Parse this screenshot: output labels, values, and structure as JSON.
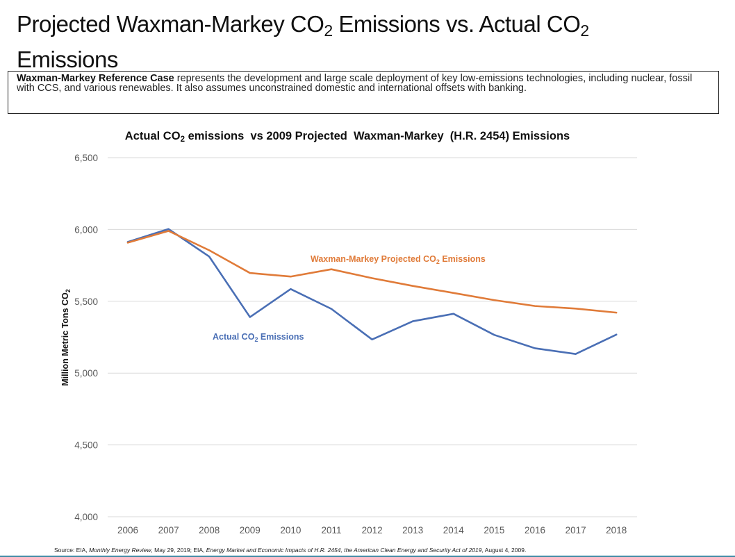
{
  "slide": {
    "title_pre": "Projected Waxman-Markey CO",
    "title_sub1": "2",
    "title_mid": " Emissions vs. Actual CO",
    "title_sub2": "2",
    "title_post": " Emissions"
  },
  "description": {
    "bold": "Waxman-Markey Reference Case",
    "text": " represents the development and large scale deployment of key low-emissions technologies, including nuclear, fossil with CCS, and various renewables. It also assumes unconstrained domestic and international offsets with banking."
  },
  "source": {
    "prefix": "Source: EIA, ",
    "italic1": "Monthly Energy Review",
    "mid": ", May 29, 2019; EIA, ",
    "italic2": "Energy Market and Economic Impacts of H.R. 2454, the American Clean Energy and Security Act of 2019",
    "suffix": ", August 4, 2009."
  },
  "colors": {
    "actual": "#4a6fb5",
    "projected": "#e07b39",
    "grid": "#d9d9d9",
    "bottom_rule": "#3f8ba6"
  },
  "chart_data": {
    "type": "line",
    "title_pre": "Actual CO",
    "title_sub": "2",
    "title_post": " emissions  vs 2009 Projected  Waxman-Markey  (H.R. 2454) Emissions",
    "ylabel_pre": "Million Metric Tons CO",
    "ylabel_sub": "2",
    "xlabel": "",
    "ylim": [
      4000,
      6500
    ],
    "yticks": [
      4000,
      4500,
      5000,
      5500,
      6000,
      6500
    ],
    "ytick_labels": [
      "4,000",
      "4,500",
      "5,000",
      "5,500",
      "6,000",
      "6,500"
    ],
    "grid": true,
    "categories": [
      "2006",
      "2007",
      "2008",
      "2009",
      "2010",
      "2011",
      "2012",
      "2013",
      "2014",
      "2015",
      "2016",
      "2017",
      "2018"
    ],
    "series": [
      {
        "name": "Waxman-Markey Projected CO2 Emissions",
        "label_pre": "Waxman-Markey Projected CO",
        "label_sub": "2",
        "label_post": " Emissions",
        "color": "#e07b39",
        "values": [
          5908,
          5990,
          5855,
          5697,
          5672,
          5723,
          5661,
          5607,
          5558,
          5508,
          5467,
          5449,
          5421
        ]
      },
      {
        "name": "Actual CO2 Emissions",
        "label_pre": "Actual CO",
        "label_sub": "2",
        "label_post": " Emissions",
        "color": "#4a6fb5",
        "values": [
          5913,
          6003,
          5811,
          5390,
          5585,
          5447,
          5234,
          5361,
          5413,
          5266,
          5173,
          5133,
          5268
        ]
      }
    ]
  }
}
